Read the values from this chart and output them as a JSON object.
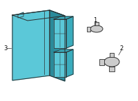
{
  "bg_color": "#ffffff",
  "unit_color": "#5bc8d8",
  "unit_dark": "#3aacbd",
  "unit_darker": "#2a8a9a",
  "outline_color": "#2c2c2c",
  "sensor_color": "#cccccc",
  "sensor_dark": "#aaaaaa",
  "label_color": "#000000",
  "label_fontsize": 6,
  "part1_label": "1",
  "part2_label": "2",
  "part3_label": "3"
}
